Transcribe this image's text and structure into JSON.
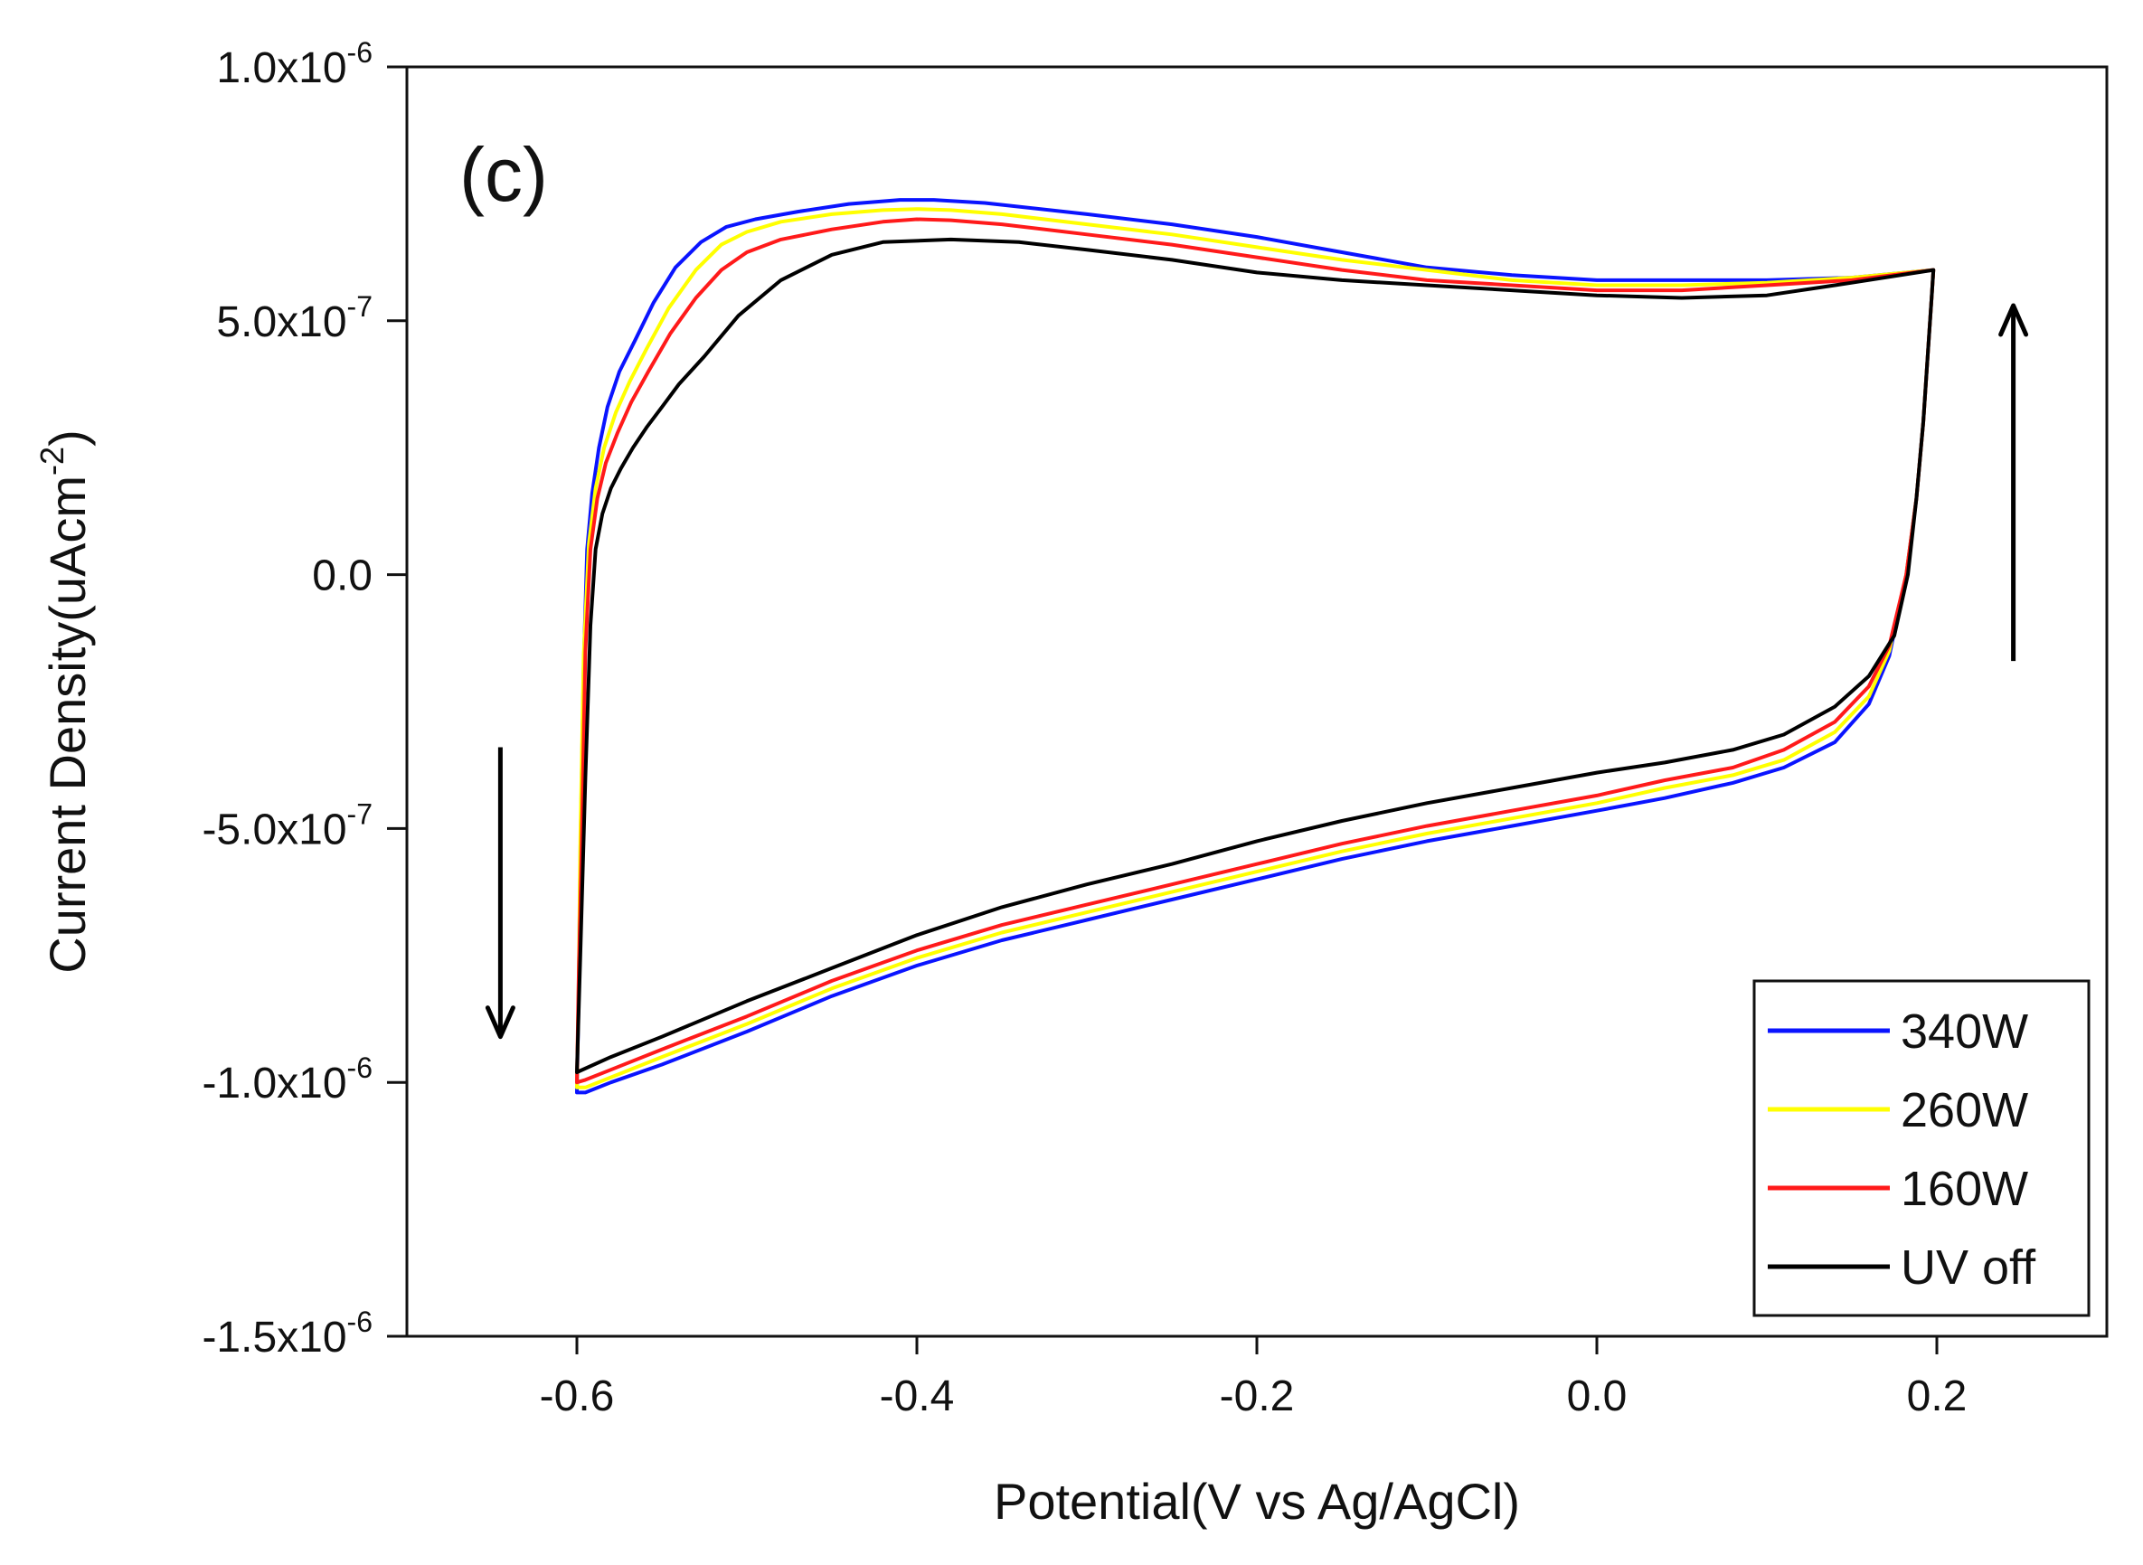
{
  "chart_data": {
    "type": "line",
    "panel_label": "(c)",
    "title": "",
    "xlabel": "Potential(V vs Ag/AgCl)",
    "ylabel": "Current Density(uAcm",
    "ylabel_superscript": "-2",
    "ylabel_suffix": ")",
    "xlim": [
      -0.7,
      0.3
    ],
    "ylim": [
      -1.5e-06,
      1e-06
    ],
    "x_ticks": [
      {
        "value": -0.6,
        "label": "-0.6"
      },
      {
        "value": -0.4,
        "label": "-0.4"
      },
      {
        "value": -0.2,
        "label": "-0.2"
      },
      {
        "value": 0.0,
        "label": "0.0"
      },
      {
        "value": 0.2,
        "label": "0.2"
      }
    ],
    "y_ticks": [
      {
        "value": 1e-06,
        "mantissa": "1.0x10",
        "exp": "-6"
      },
      {
        "value": 5e-07,
        "mantissa": "5.0x10",
        "exp": "-7"
      },
      {
        "value": 0.0,
        "mantissa": "0.0",
        "exp": ""
      },
      {
        "value": -5e-07,
        "mantissa": "-5.0x10",
        "exp": "-7"
      },
      {
        "value": -1e-06,
        "mantissa": "-1.0x10",
        "exp": "-6"
      },
      {
        "value": -1.5e-06,
        "mantissa": "-1.5x10",
        "exp": "-6"
      }
    ],
    "grid": false,
    "legend_position": "bottom-right",
    "annotations": [
      {
        "name": "scan-arrow-down",
        "x": -0.645,
        "y_from": -3.4e-07,
        "y_to": -9.1e-07
      },
      {
        "name": "scan-arrow-up",
        "x": 0.245,
        "y_from": -1.7e-07,
        "y_to": 5.3e-07
      }
    ],
    "series": [
      {
        "name": "UV off",
        "color": "#000000",
        "anodic": {
          "x": [
            -0.6,
            -0.598,
            -0.595,
            -0.592,
            -0.589,
            -0.585,
            -0.58,
            -0.574,
            -0.567,
            -0.559,
            -0.55,
            -0.54,
            -0.525,
            -0.505,
            -0.48,
            -0.45,
            -0.42,
            -0.38,
            -0.34,
            -0.3,
            -0.25,
            -0.2,
            -0.15,
            -0.1,
            -0.05,
            0.0,
            0.05,
            0.1,
            0.15,
            0.198
          ],
          "y": [
            -9.8e-07,
            -7.5e-07,
            -4e-07,
            -1e-07,
            5e-08,
            1.2e-07,
            1.7e-07,
            2.1e-07,
            2.5e-07,
            2.9e-07,
            3.3e-07,
            3.75e-07,
            4.3e-07,
            5.1e-07,
            5.8e-07,
            6.3e-07,
            6.55e-07,
            6.6e-07,
            6.55e-07,
            6.4e-07,
            6.2e-07,
            5.95e-07,
            5.8e-07,
            5.7e-07,
            5.6e-07,
            5.5e-07,
            5.45e-07,
            5.5e-07,
            5.75e-07,
            6e-07
          ]
        },
        "cathodic": {
          "x": [
            0.198,
            0.197,
            0.195,
            0.192,
            0.188,
            0.183,
            0.175,
            0.16,
            0.14,
            0.11,
            0.08,
            0.04,
            0.0,
            -0.05,
            -0.1,
            -0.15,
            -0.2,
            -0.25,
            -0.3,
            -0.35,
            -0.4,
            -0.45,
            -0.5,
            -0.55,
            -0.58,
            -0.6
          ],
          "y": [
            6e-07,
            5.5e-07,
            4.5e-07,
            3e-07,
            1.5e-07,
            0.0,
            -1.2e-07,
            -2e-07,
            -2.6e-07,
            -3.15e-07,
            -3.45e-07,
            -3.7e-07,
            -3.9e-07,
            -4.2e-07,
            -4.5e-07,
            -4.85e-07,
            -5.25e-07,
            -5.7e-07,
            -6.1e-07,
            -6.55e-07,
            -7.1e-07,
            -7.75e-07,
            -8.4e-07,
            -9.1e-07,
            -9.5e-07,
            -9.8e-07
          ]
        }
      },
      {
        "name": "160W",
        "color": "#ff1a1a",
        "anodic": {
          "x": [
            -0.6,
            -0.599,
            -0.597,
            -0.595,
            -0.592,
            -0.588,
            -0.583,
            -0.576,
            -0.568,
            -0.558,
            -0.545,
            -0.53,
            -0.515,
            -0.5,
            -0.48,
            -0.45,
            -0.42,
            -0.4,
            -0.38,
            -0.35,
            -0.3,
            -0.25,
            -0.2,
            -0.15,
            -0.1,
            -0.05,
            0.0,
            0.05,
            0.1,
            0.15,
            0.198
          ],
          "y": [
            -1e-06,
            -8e-07,
            -5e-07,
            -1.5e-07,
            5e-08,
            1.5e-07,
            2.2e-07,
            2.8e-07,
            3.4e-07,
            4e-07,
            4.75e-07,
            5.45e-07,
            6e-07,
            6.35e-07,
            6.6e-07,
            6.8e-07,
            6.95e-07,
            7e-07,
            6.98e-07,
            6.9e-07,
            6.7e-07,
            6.5e-07,
            6.25e-07,
            6e-07,
            5.8e-07,
            5.7e-07,
            5.6e-07,
            5.6e-07,
            5.7e-07,
            5.8e-07,
            6e-07
          ]
        },
        "cathodic": {
          "x": [
            0.198,
            0.197,
            0.195,
            0.192,
            0.188,
            0.182,
            0.172,
            0.16,
            0.14,
            0.11,
            0.08,
            0.04,
            0.0,
            -0.05,
            -0.1,
            -0.15,
            -0.2,
            -0.25,
            -0.3,
            -0.35,
            -0.4,
            -0.45,
            -0.5,
            -0.55,
            -0.58,
            -0.595,
            -0.6
          ],
          "y": [
            6e-07,
            5.5e-07,
            4.5e-07,
            3e-07,
            1.5e-07,
            0.0,
            -1.4e-07,
            -2.2e-07,
            -2.9e-07,
            -3.45e-07,
            -3.8e-07,
            -4.05e-07,
            -4.35e-07,
            -4.65e-07,
            -4.95e-07,
            -5.3e-07,
            -5.7e-07,
            -6.1e-07,
            -6.5e-07,
            -6.9e-07,
            -7.4e-07,
            -8e-07,
            -8.7e-07,
            -9.35e-07,
            -9.75e-07,
            -9.95e-07,
            -1e-06
          ]
        }
      },
      {
        "name": "260W",
        "color": "#ffff00",
        "anodic": {
          "x": [
            -0.6,
            -0.599,
            -0.598,
            -0.596,
            -0.593,
            -0.589,
            -0.584,
            -0.577,
            -0.569,
            -0.559,
            -0.546,
            -0.53,
            -0.515,
            -0.5,
            -0.48,
            -0.45,
            -0.42,
            -0.4,
            -0.38,
            -0.35,
            -0.3,
            -0.25,
            -0.2,
            -0.15,
            -0.1,
            -0.05,
            0.0,
            0.05,
            0.1,
            0.15,
            0.198
          ],
          "y": [
            -1.01e-06,
            -8.2e-07,
            -5.2e-07,
            -1.6e-07,
            6e-08,
            1.7e-07,
            2.5e-07,
            3.2e-07,
            3.8e-07,
            4.45e-07,
            5.25e-07,
            6e-07,
            6.5e-07,
            6.75e-07,
            6.95e-07,
            7.1e-07,
            7.18e-07,
            7.2e-07,
            7.18e-07,
            7.1e-07,
            6.9e-07,
            6.7e-07,
            6.45e-07,
            6.2e-07,
            6e-07,
            5.8e-07,
            5.7e-07,
            5.7e-07,
            5.75e-07,
            5.85e-07,
            6e-07
          ]
        },
        "cathodic": {
          "x": [
            0.198,
            0.197,
            0.195,
            0.192,
            0.188,
            0.182,
            0.172,
            0.16,
            0.14,
            0.11,
            0.08,
            0.04,
            0.0,
            -0.05,
            -0.1,
            -0.15,
            -0.2,
            -0.25,
            -0.3,
            -0.35,
            -0.4,
            -0.45,
            -0.5,
            -0.55,
            -0.58,
            -0.595,
            -0.6
          ],
          "y": [
            6e-07,
            5.5e-07,
            4.5e-07,
            3e-07,
            1.5e-07,
            0.0,
            -1.5e-07,
            -2.4e-07,
            -3.1e-07,
            -3.65e-07,
            -3.95e-07,
            -4.2e-07,
            -4.5e-07,
            -4.8e-07,
            -5.1e-07,
            -5.45e-07,
            -5.85e-07,
            -6.25e-07,
            -6.65e-07,
            -7.05e-07,
            -7.55e-07,
            -8.15e-07,
            -8.85e-07,
            -9.5e-07,
            -9.9e-07,
            -1.01e-06,
            -1.01e-06
          ]
        }
      },
      {
        "name": "340W",
        "color": "#0a14ff",
        "anodic": {
          "x": [
            -0.6,
            -0.599,
            -0.598,
            -0.596,
            -0.594,
            -0.591,
            -0.587,
            -0.582,
            -0.575,
            -0.566,
            -0.555,
            -0.542,
            -0.527,
            -0.512,
            -0.495,
            -0.47,
            -0.44,
            -0.41,
            -0.39,
            -0.36,
            -0.3,
            -0.25,
            -0.2,
            -0.15,
            -0.1,
            -0.05,
            0.0,
            0.05,
            0.1,
            0.15,
            0.198
          ],
          "y": [
            -1.02e-06,
            -8.4e-07,
            -5.5e-07,
            -1.8e-07,
            5e-08,
            1.6e-07,
            2.5e-07,
            3.3e-07,
            4e-07,
            4.6e-07,
            5.35e-07,
            6.05e-07,
            6.55e-07,
            6.85e-07,
            7e-07,
            7.15e-07,
            7.3e-07,
            7.38e-07,
            7.38e-07,
            7.32e-07,
            7.1e-07,
            6.9e-07,
            6.65e-07,
            6.35e-07,
            6.05e-07,
            5.9e-07,
            5.8e-07,
            5.8e-07,
            5.8e-07,
            5.85e-07,
            6e-07
          ]
        },
        "cathodic": {
          "x": [
            0.198,
            0.197,
            0.195,
            0.192,
            0.188,
            0.182,
            0.172,
            0.16,
            0.14,
            0.11,
            0.08,
            0.04,
            0.0,
            -0.05,
            -0.1,
            -0.15,
            -0.2,
            -0.25,
            -0.3,
            -0.35,
            -0.4,
            -0.45,
            -0.5,
            -0.55,
            -0.58,
            -0.595,
            -0.6
          ],
          "y": [
            6e-07,
            5.5e-07,
            4.5e-07,
            3e-07,
            1.5e-07,
            0.0,
            -1.6e-07,
            -2.55e-07,
            -3.3e-07,
            -3.8e-07,
            -4.1e-07,
            -4.4e-07,
            -4.65e-07,
            -4.95e-07,
            -5.25e-07,
            -5.6e-07,
            -6e-07,
            -6.4e-07,
            -6.8e-07,
            -7.2e-07,
            -7.7e-07,
            -8.3e-07,
            -9e-07,
            -9.65e-07,
            -1e-06,
            -1.02e-06,
            -1.02e-06
          ]
        }
      }
    ]
  }
}
